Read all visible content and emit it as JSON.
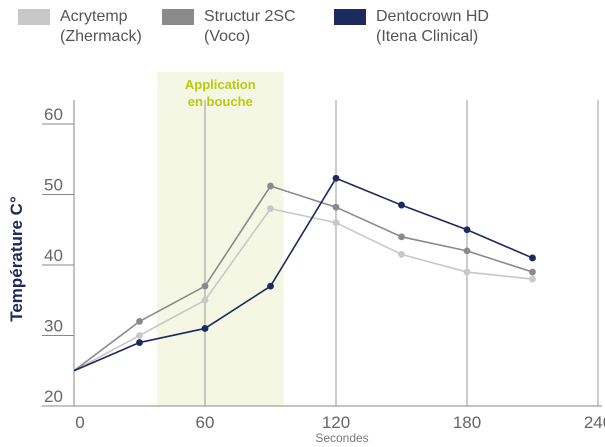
{
  "chart_data": {
    "type": "line",
    "xlabel": "Secondes",
    "ylabel": "Température C°",
    "xlim": [
      0,
      240
    ],
    "ylim": [
      20,
      60
    ],
    "x_ticks": [
      0,
      60,
      120,
      180,
      240
    ],
    "y_ticks": [
      20,
      30,
      40,
      50,
      60
    ],
    "grid": "vertical gridlines at x ticks",
    "legend_position": "top",
    "annotation": {
      "text_lines": [
        "Application",
        "en bouche"
      ],
      "x_range": [
        38,
        96
      ],
      "fill_color": "#f4f7e3",
      "text_color": "#b6cc12"
    },
    "axis_color": "#888888",
    "ylabel_color": "#1c2a5e",
    "series": [
      {
        "name_lines": [
          "Acrytemp",
          "(Zhermack)"
        ],
        "color": "#c8c8c8",
        "x": [
          0,
          30,
          60,
          90,
          120,
          150,
          180,
          210
        ],
        "y": [
          25,
          30,
          35,
          48,
          46,
          41.5,
          39,
          38
        ]
      },
      {
        "name_lines": [
          "Structur 2SC",
          "(Voco)"
        ],
        "color": "#8a8a8a",
        "x": [
          0,
          30,
          60,
          90,
          120,
          150,
          180,
          210
        ],
        "y": [
          25,
          32,
          37,
          51.2,
          48.2,
          44,
          42,
          39
        ]
      },
      {
        "name_lines": [
          "Dentocrown HD",
          "(Itena Clinical)"
        ],
        "color": "#1c2a5e",
        "x": [
          0,
          30,
          60,
          90,
          120,
          150,
          180,
          210
        ],
        "y": [
          25,
          29,
          31,
          37,
          52.3,
          48.5,
          45,
          41
        ]
      }
    ]
  }
}
